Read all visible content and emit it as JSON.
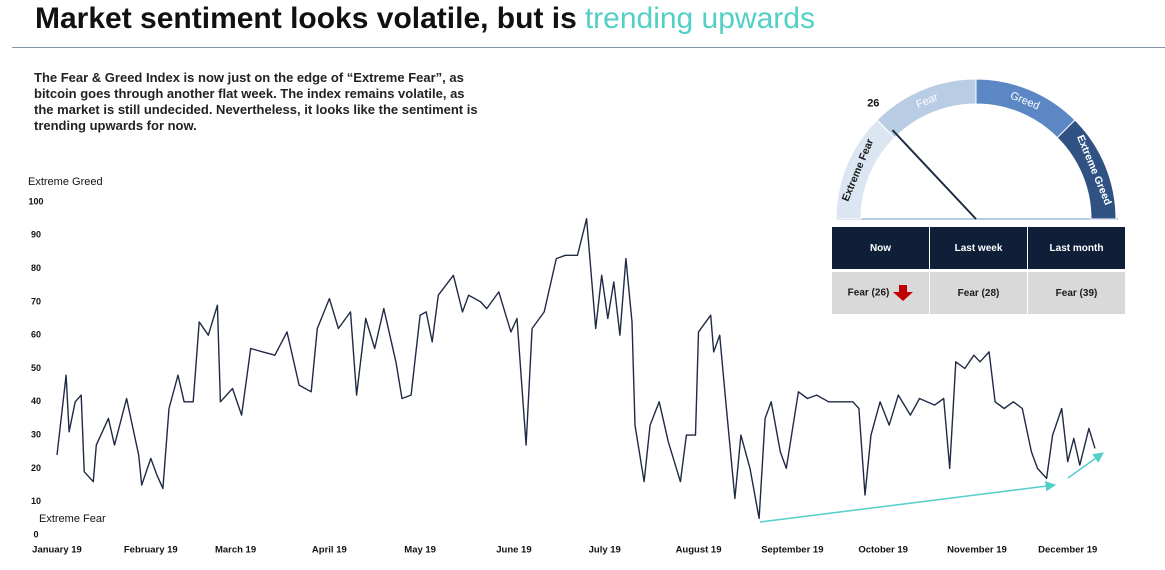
{
  "header": {
    "title": "Market sentiment looks volatile, but is",
    "highlight": "trending upwards"
  },
  "description": "The Fear & Greed Index is now just on the edge of “Extreme Fear”, as bitcoin goes through another flat week. The index remains volatile, as the market is still undecided. Nevertheless, it looks like the sentiment is trending upwards for now.",
  "chart_data": {
    "type": "line",
    "color": "#1f2a44",
    "grid": false,
    "annotations": {
      "top": "Extreme Greed",
      "bottom": "Extreme Fear"
    },
    "x": [
      0,
      3,
      4,
      6,
      8,
      9,
      12,
      13,
      17,
      19,
      23,
      27,
      28,
      31,
      33,
      35,
      37,
      40,
      42,
      45,
      47,
      50,
      53,
      54,
      58,
      61,
      64,
      68,
      72,
      76,
      80,
      84,
      86,
      90,
      93,
      97,
      99,
      102,
      105,
      108,
      112,
      114,
      117,
      120,
      122,
      124,
      126,
      131,
      134,
      136,
      140,
      142,
      146,
      150,
      152,
      155,
      157,
      161,
      165,
      168,
      172,
      175,
      178,
      180,
      182,
      184,
      186,
      188,
      190,
      191,
      194,
      196,
      199,
      202,
      206,
      208,
      211,
      212,
      216,
      217,
      219,
      221,
      224,
      226,
      229,
      232,
      234,
      236,
      239,
      241,
      245,
      248,
      251,
      255,
      259,
      263,
      265,
      267,
      269,
      272,
      275,
      278,
      282,
      285,
      290,
      293,
      295,
      297,
      300,
      303,
      305,
      308,
      310,
      313,
      316,
      319,
      322,
      324,
      327,
      329,
      332,
      334,
      336,
      338,
      341,
      343
    ],
    "values": [
      24,
      48,
      31,
      40,
      42,
      19,
      16,
      27,
      35,
      27,
      41,
      24,
      15,
      23,
      18,
      14,
      38,
      48,
      40,
      40,
      64,
      60,
      69,
      40,
      44,
      36,
      56,
      55,
      54,
      61,
      45,
      43,
      62,
      71,
      62,
      67,
      42,
      65,
      56,
      68,
      52,
      41,
      42,
      66,
      67,
      58,
      72,
      78,
      67,
      72,
      70,
      68,
      73,
      61,
      65,
      27,
      62,
      67,
      83,
      84,
      84,
      95,
      62,
      78,
      65,
      76,
      60,
      83,
      64,
      33,
      16,
      33,
      40,
      28,
      16,
      30,
      30,
      61,
      66,
      55,
      60,
      40,
      11,
      30,
      20,
      5,
      35,
      40,
      25,
      20,
      43,
      41,
      42,
      40,
      40,
      40,
      38,
      12,
      30,
      40,
      33,
      42,
      36,
      41,
      39,
      41,
      20,
      52,
      50,
      54,
      52,
      55,
      40,
      38,
      40,
      38,
      25,
      20,
      17,
      30,
      38,
      22,
      29,
      21,
      32,
      26
    ],
    "xlim": [
      0,
      344
    ],
    "xticks": [
      {
        "value": 0,
        "label": "January 19"
      },
      {
        "value": 31,
        "label": "February 19"
      },
      {
        "value": 59,
        "label": "March 19"
      },
      {
        "value": 90,
        "label": "April 19"
      },
      {
        "value": 120,
        "label": "May 19"
      },
      {
        "value": 151,
        "label": "June 19"
      },
      {
        "value": 181,
        "label": "July 19"
      },
      {
        "value": 212,
        "label": "August 19"
      },
      {
        "value": 243,
        "label": "September 19"
      },
      {
        "value": 273,
        "label": "October 19"
      },
      {
        "value": 304,
        "label": "November 19"
      },
      {
        "value": 334,
        "label": "December 19"
      }
    ],
    "ylim": [
      0,
      100
    ],
    "yticks": [
      0,
      10,
      20,
      30,
      40,
      50,
      60,
      70,
      80,
      90,
      100
    ]
  },
  "gauge": {
    "value": 26,
    "needle_color": "#1f2a44",
    "segments": [
      {
        "label": "Extreme Fear",
        "range": [
          0,
          25
        ],
        "color": "#dce6f2",
        "label_color": "#1a1a1a"
      },
      {
        "label": "Fear",
        "range": [
          25,
          50
        ],
        "color": "#b8cce4",
        "label_color": "#ffffff"
      },
      {
        "label": "Greed",
        "range": [
          50,
          75
        ],
        "color": "#5b87c5",
        "label_color": "#ffffff"
      },
      {
        "label": "Extreme Greed",
        "range": [
          75,
          100
        ],
        "color": "#2f5283",
        "label_color": "#ffffff"
      }
    ]
  },
  "table": {
    "headers": [
      "Now",
      "Last week",
      "Last month"
    ],
    "rows": [
      [
        "Fear (26)",
        "Fear (28)",
        "Fear (39)"
      ]
    ]
  }
}
